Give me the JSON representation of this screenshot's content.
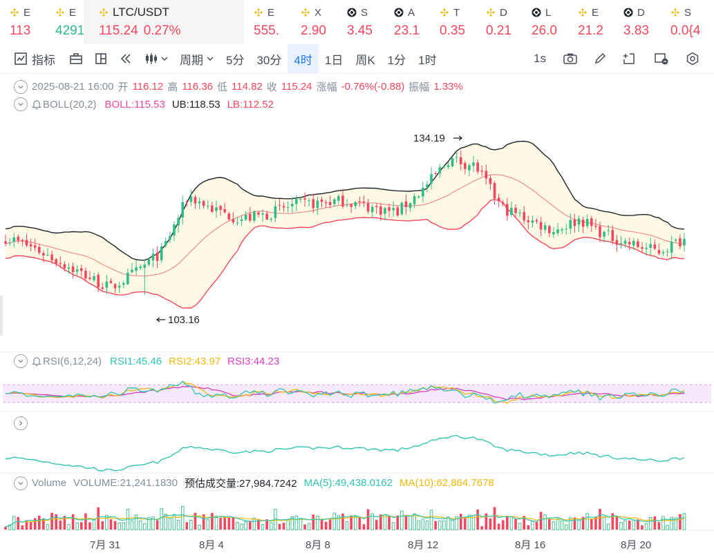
{
  "tickers": [
    {
      "sym": "E",
      "value": "113",
      "dir": "dn",
      "coin": "bnb"
    },
    {
      "sym": "E",
      "value": "4291",
      "dir": "up",
      "coin": "bnb"
    },
    {
      "sym": "LTC/USDT",
      "price": "115.24",
      "change": "0.27%",
      "dir": "dn",
      "coin": "bnb",
      "active": true
    },
    {
      "sym": "E",
      "value": "555.",
      "dir": "dn",
      "coin": "bnb"
    },
    {
      "sym": "X",
      "value": "2.90",
      "dir": "dn",
      "coin": "bnb"
    },
    {
      "sym": "S",
      "value": "3.45",
      "dir": "dn",
      "coin": "dark"
    },
    {
      "sym": "A",
      "value": "23.1",
      "dir": "dn",
      "coin": "dark"
    },
    {
      "sym": "T",
      "value": "0.35",
      "dir": "dn",
      "coin": "bnb"
    },
    {
      "sym": "D",
      "value": "0.21",
      "dir": "dn",
      "coin": "bnb"
    },
    {
      "sym": "L",
      "value": "26.0",
      "dir": "dn",
      "coin": "dark"
    },
    {
      "sym": "E",
      "value": "21.2",
      "dir": "dn",
      "coin": "bnb"
    },
    {
      "sym": "D",
      "value": "3.83",
      "dir": "dn",
      "coin": "dark"
    },
    {
      "sym": "S",
      "value": "0.0{4",
      "dir": "dn",
      "coin": "bnb"
    }
  ],
  "toolbar": {
    "indicators": "指标",
    "period": "周期",
    "intervals": [
      "5分",
      "30分",
      "4时",
      "1日",
      "周K",
      "1分",
      "1时"
    ],
    "active_interval": "4时",
    "refresh": "1s"
  },
  "ohlc": {
    "date": "2025-08-21 16:00",
    "open_label": "开",
    "open": "116.12",
    "high_label": "高",
    "high": "116.36",
    "low_label": "低",
    "low": "114.82",
    "close_label": "收",
    "close": "115.24",
    "change_label": "涨幅",
    "change": "-0.76%(-0.88)",
    "amp_label": "振幅",
    "amp": "1.33%"
  },
  "boll": {
    "name": "BOLL(20,2)",
    "boll_label": "BOLL:",
    "boll": "115.53",
    "ub_label": "UB:",
    "ub": "118.53",
    "lb_label": "LB:",
    "lb": "112.52"
  },
  "price_marks": {
    "high": "134.19",
    "low": "103.16"
  },
  "rsi": {
    "name": "RSI(6,12,24)",
    "rsi1_label": "RSI1:",
    "rsi1": "45.46",
    "rsi2_label": "RSI2:",
    "rsi2": "43.97",
    "rsi3_label": "RSI3:",
    "rsi3": "44.23"
  },
  "volume": {
    "name": "Volume",
    "vol_label": "VOLUME:",
    "vol": "21,241.1830",
    "est_label": "预估成交量:",
    "est": "27,984.7242",
    "ma5_label": "MA(5):",
    "ma5": "49,438.0162",
    "ma10_label": "MA(10):",
    "ma10": "62,864.7678"
  },
  "dates": [
    "7月 31",
    "8月 4",
    "8月 8",
    "8月 12",
    "8月 16",
    "8月 20"
  ],
  "chart_data": {
    "type": "candlestick",
    "interval": "4h",
    "x_labels": [
      "7月 31",
      "8月 4",
      "8月 8",
      "8月 12",
      "8月 16",
      "8月 20"
    ],
    "price_range": [
      103.16,
      134.19
    ],
    "close_anchors": [
      115.5,
      113.5,
      110.5,
      107.5,
      104.5,
      108.0,
      112.5,
      124.5,
      121.5,
      119.5,
      120.5,
      122.5,
      123.0,
      123.5,
      122.0,
      121.0,
      126.0,
      132.5,
      131.0,
      122.0,
      119.5,
      117.0,
      119.5,
      116.0,
      114.0,
      112.5,
      115.24
    ],
    "last_close": 115.24,
    "period_high": 134.19,
    "period_low": 103.16,
    "colors": {
      "up": "#2ebd85",
      "down": "#f6465d",
      "mid": "#f28b8b",
      "ub": "#1e2329",
      "lb": "#f6465d",
      "band": "#fdf9e4"
    }
  }
}
